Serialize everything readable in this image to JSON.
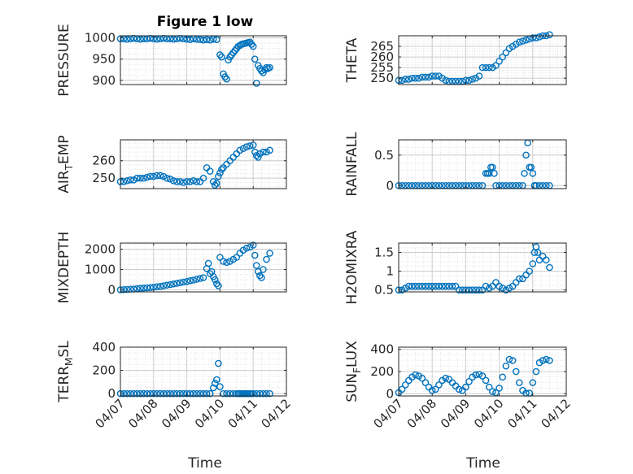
{
  "colors": {
    "marker": "#0072BD",
    "axis": "#262626",
    "grid": "#cccccc",
    "minor_grid": "#e4e4e4"
  },
  "figure": {
    "title": "Figure 1 low",
    "xlabel": "Time"
  },
  "x_ticks": [
    "04/07",
    "04/08",
    "04/09",
    "04/10",
    "04/11",
    "04/12"
  ],
  "chart_data": [
    {
      "type": "scatter",
      "ylabel": "PRESSURE",
      "ylim": [
        890,
        1005
      ],
      "yticks": [
        {
          "v": 900,
          "label": "900"
        },
        {
          "v": 950,
          "label": "950"
        },
        {
          "v": 1000,
          "label": "1000"
        }
      ],
      "x": [
        0.0,
        0.1,
        0.2,
        0.3,
        0.4,
        0.5,
        0.6,
        0.7,
        0.8,
        0.9,
        1.0,
        1.1,
        1.2,
        1.3,
        1.4,
        1.5,
        1.6,
        1.7,
        1.8,
        1.9,
        2.0,
        2.1,
        2.2,
        2.3,
        2.4,
        2.5,
        2.6,
        2.7,
        2.8,
        2.9,
        3.0,
        3.05,
        3.1,
        3.15,
        3.2,
        3.25,
        3.3,
        3.35,
        3.4,
        3.45,
        3.5,
        3.55,
        3.6,
        3.65,
        3.7,
        3.75,
        3.8,
        3.85,
        3.9,
        3.95,
        4.0,
        4.05,
        4.1,
        4.15,
        4.2,
        4.25,
        4.3,
        4.35,
        4.4,
        4.45,
        4.5
      ],
      "y": [
        998,
        998,
        997,
        998,
        999,
        998,
        997,
        998,
        998,
        999,
        998,
        997,
        998,
        999,
        998,
        998,
        997,
        998,
        999,
        998,
        997,
        996,
        998,
        997,
        996,
        995,
        996,
        995,
        997,
        996,
        960,
        955,
        915,
        908,
        903,
        948,
        955,
        960,
        965,
        970,
        975,
        980,
        982,
        985,
        986,
        987,
        988,
        989,
        990,
        985,
        980,
        950,
        893,
        935,
        928,
        922,
        918,
        925,
        930,
        928,
        930
      ]
    },
    {
      "type": "scatter",
      "ylabel": "THETA",
      "ylim": [
        247,
        270
      ],
      "yticks": [
        {
          "v": 250,
          "label": "250"
        },
        {
          "v": 255,
          "label": "255"
        },
        {
          "v": 260,
          "label": "260"
        },
        {
          "v": 265,
          "label": "265"
        }
      ],
      "x": [
        0.0,
        0.1,
        0.2,
        0.3,
        0.4,
        0.5,
        0.6,
        0.7,
        0.8,
        0.9,
        1.0,
        1.1,
        1.2,
        1.3,
        1.4,
        1.5,
        1.6,
        1.7,
        1.8,
        1.9,
        2.0,
        2.1,
        2.2,
        2.3,
        2.4,
        2.5,
        2.6,
        2.7,
        2.8,
        2.9,
        3.0,
        3.1,
        3.2,
        3.3,
        3.4,
        3.5,
        3.6,
        3.7,
        3.8,
        3.9,
        4.0,
        4.1,
        4.2,
        4.3,
        4.4,
        4.5
      ],
      "y": [
        249,
        249,
        249.5,
        249.5,
        250,
        250,
        250,
        250.5,
        250.5,
        250.5,
        251,
        251,
        251,
        250,
        249,
        248.5,
        248.5,
        248.5,
        248.5,
        248.5,
        249,
        249,
        249.5,
        250,
        251,
        255,
        255,
        255,
        255,
        256,
        258,
        260,
        262,
        264,
        265,
        266,
        267,
        267.5,
        268,
        268.5,
        269,
        269,
        269.5,
        270,
        270,
        270.5
      ]
    },
    {
      "type": "scatter",
      "ylabel": "AIR",
      "ylabel_sub": "T",
      "ylabel_suffix": "EMP",
      "ylim": [
        244,
        272
      ],
      "yticks": [
        {
          "v": 250,
          "label": "250"
        },
        {
          "v": 260,
          "label": "260"
        }
      ],
      "x": [
        0.0,
        0.1,
        0.2,
        0.3,
        0.4,
        0.5,
        0.6,
        0.7,
        0.8,
        0.9,
        1.0,
        1.1,
        1.2,
        1.3,
        1.4,
        1.5,
        1.6,
        1.7,
        1.8,
        1.9,
        2.0,
        2.1,
        2.2,
        2.3,
        2.4,
        2.5,
        2.6,
        2.7,
        2.8,
        2.85,
        2.9,
        2.95,
        3.0,
        3.05,
        3.1,
        3.2,
        3.3,
        3.4,
        3.5,
        3.6,
        3.7,
        3.8,
        3.9,
        4.0,
        4.05,
        4.1,
        4.15,
        4.2,
        4.3,
        4.4,
        4.5
      ],
      "y": [
        248,
        248,
        248.5,
        249,
        249,
        250,
        250,
        250,
        250.5,
        251,
        251,
        251.5,
        251.5,
        251,
        250,
        249.5,
        248.5,
        248,
        248,
        247.5,
        248,
        248,
        248.5,
        248,
        248,
        250,
        256,
        254,
        248,
        246,
        247,
        251,
        253,
        255,
        256,
        258,
        260,
        262,
        264,
        266,
        267,
        268,
        268.5,
        269,
        265,
        263,
        262,
        264,
        265,
        265,
        266
      ]
    },
    {
      "type": "scatter",
      "ylabel": "RAINFALL",
      "ylim": [
        -0.05,
        0.75
      ],
      "yticks": [
        {
          "v": 0,
          "label": "0"
        },
        {
          "v": 0.5,
          "label": "0.5"
        }
      ],
      "x": [
        0.0,
        0.1,
        0.2,
        0.3,
        0.4,
        0.5,
        0.6,
        0.7,
        0.8,
        0.9,
        1.0,
        1.1,
        1.2,
        1.3,
        1.4,
        1.5,
        1.6,
        1.7,
        1.8,
        1.9,
        2.0,
        2.1,
        2.2,
        2.3,
        2.4,
        2.5,
        2.6,
        2.65,
        2.7,
        2.75,
        2.8,
        2.85,
        2.9,
        3.0,
        3.1,
        3.2,
        3.3,
        3.4,
        3.5,
        3.6,
        3.7,
        3.75,
        3.8,
        3.85,
        3.9,
        3.95,
        4.0,
        4.05,
        4.1,
        4.2,
        4.3,
        4.4,
        4.5
      ],
      "y": [
        0,
        0,
        0,
        0,
        0,
        0,
        0,
        0,
        0,
        0,
        0,
        0,
        0,
        0,
        0,
        0,
        0,
        0,
        0,
        0,
        0,
        0,
        0,
        0,
        0,
        0,
        0.2,
        0.2,
        0.2,
        0.3,
        0.3,
        0.2,
        0,
        0,
        0,
        0,
        0,
        0,
        0,
        0,
        0,
        0.2,
        0.5,
        0.7,
        0.3,
        0.3,
        0.2,
        0,
        0,
        0,
        0,
        0,
        0
      ]
    },
    {
      "type": "scatter",
      "ylabel": "MIXDEPTH",
      "ylim": [
        -100,
        2300
      ],
      "yticks": [
        {
          "v": 0,
          "label": "0"
        },
        {
          "v": 1000,
          "label": "1000"
        },
        {
          "v": 2000,
          "label": "2000"
        }
      ],
      "x": [
        0.0,
        0.1,
        0.2,
        0.3,
        0.4,
        0.5,
        0.6,
        0.7,
        0.8,
        0.9,
        1.0,
        1.1,
        1.2,
        1.3,
        1.4,
        1.5,
        1.6,
        1.7,
        1.8,
        1.9,
        2.0,
        2.1,
        2.2,
        2.3,
        2.4,
        2.5,
        2.6,
        2.65,
        2.7,
        2.75,
        2.8,
        2.85,
        2.9,
        2.95,
        3.0,
        3.1,
        3.2,
        3.3,
        3.4,
        3.5,
        3.6,
        3.7,
        3.8,
        3.9,
        4.0,
        4.05,
        4.1,
        4.15,
        4.2,
        4.25,
        4.3,
        4.4,
        4.5
      ],
      "y": [
        0,
        10,
        20,
        30,
        40,
        60,
        80,
        90,
        100,
        110,
        130,
        150,
        170,
        200,
        230,
        260,
        290,
        320,
        350,
        380,
        410,
        450,
        480,
        520,
        560,
        600,
        1050,
        1300,
        800,
        900,
        650,
        500,
        300,
        200,
        1600,
        1400,
        1350,
        1400,
        1500,
        1600,
        1800,
        1950,
        2050,
        2100,
        2200,
        1700,
        1200,
        900,
        700,
        600,
        1000,
        1500,
        1800
      ]
    },
    {
      "type": "scatter",
      "ylabel": "H2OMIXRA",
      "ylim": [
        0.45,
        1.75
      ],
      "yticks": [
        {
          "v": 0.5,
          "label": "0.5"
        },
        {
          "v": 1.0,
          "label": "1"
        },
        {
          "v": 1.5,
          "label": "1.5"
        }
      ],
      "x": [
        0.0,
        0.1,
        0.2,
        0.3,
        0.4,
        0.5,
        0.6,
        0.7,
        0.8,
        0.9,
        1.0,
        1.1,
        1.2,
        1.3,
        1.4,
        1.5,
        1.6,
        1.7,
        1.8,
        1.9,
        2.0,
        2.1,
        2.2,
        2.3,
        2.4,
        2.5,
        2.6,
        2.7,
        2.8,
        2.9,
        3.0,
        3.1,
        3.2,
        3.3,
        3.4,
        3.5,
        3.6,
        3.7,
        3.8,
        3.9,
        4.0,
        4.05,
        4.1,
        4.15,
        4.2,
        4.3,
        4.4,
        4.5
      ],
      "y": [
        0.5,
        0.5,
        0.55,
        0.6,
        0.6,
        0.6,
        0.6,
        0.6,
        0.6,
        0.6,
        0.6,
        0.6,
        0.6,
        0.6,
        0.6,
        0.6,
        0.6,
        0.6,
        0.5,
        0.5,
        0.5,
        0.5,
        0.5,
        0.5,
        0.5,
        0.5,
        0.6,
        0.55,
        0.6,
        0.7,
        0.6,
        0.55,
        0.5,
        0.55,
        0.6,
        0.7,
        0.8,
        0.8,
        0.9,
        1.0,
        1.2,
        1.5,
        1.65,
        1.5,
        1.3,
        1.4,
        1.3,
        1.1
      ]
    },
    {
      "type": "scatter",
      "ylabel": "TERR",
      "ylabel_sub": "M",
      "ylabel_suffix": "SL",
      "ylim": [
        -20,
        400
      ],
      "yticks": [
        {
          "v": 0,
          "label": "0"
        },
        {
          "v": 200,
          "label": "200"
        },
        {
          "v": 400,
          "label": "400"
        }
      ],
      "x": [
        0.0,
        0.1,
        0.2,
        0.3,
        0.4,
        0.5,
        0.6,
        0.7,
        0.8,
        0.9,
        1.0,
        1.1,
        1.2,
        1.3,
        1.4,
        1.5,
        1.6,
        1.7,
        1.8,
        1.9,
        2.0,
        2.1,
        2.2,
        2.3,
        2.4,
        2.5,
        2.6,
        2.7,
        2.8,
        2.85,
        2.9,
        2.95,
        3.0,
        3.1,
        3.2,
        3.3,
        3.4,
        3.5,
        3.55,
        3.6,
        3.65,
        3.7,
        3.75,
        3.8,
        3.85,
        3.9,
        3.95,
        4.0,
        4.1,
        4.2,
        4.3,
        4.4,
        4.5
      ],
      "y": [
        0,
        0,
        0,
        0,
        0,
        0,
        0,
        0,
        0,
        0,
        0,
        0,
        0,
        0,
        0,
        0,
        0,
        0,
        0,
        0,
        0,
        0,
        0,
        0,
        0,
        0,
        0,
        0,
        50,
        90,
        120,
        260,
        60,
        0,
        0,
        0,
        0,
        0,
        0,
        0,
        0,
        0,
        0,
        0,
        0,
        0,
        0,
        0,
        0,
        0,
        0,
        0,
        0
      ]
    },
    {
      "type": "scatter",
      "ylabel": "SUN",
      "ylabel_sub": "F",
      "ylabel_suffix": "LUX",
      "ylim": [
        -20,
        420
      ],
      "yticks": [
        {
          "v": 0,
          "label": "0"
        },
        {
          "v": 200,
          "label": "200"
        },
        {
          "v": 400,
          "label": "400"
        }
      ],
      "x": [
        0.0,
        0.1,
        0.2,
        0.3,
        0.4,
        0.5,
        0.6,
        0.7,
        0.8,
        0.9,
        1.0,
        1.1,
        1.2,
        1.3,
        1.4,
        1.5,
        1.6,
        1.7,
        1.8,
        1.9,
        2.0,
        2.1,
        2.2,
        2.3,
        2.4,
        2.5,
        2.6,
        2.7,
        2.8,
        2.9,
        3.0,
        3.1,
        3.2,
        3.3,
        3.4,
        3.5,
        3.6,
        3.7,
        3.8,
        3.9,
        4.0,
        4.1,
        4.2,
        4.3,
        4.4,
        4.5
      ],
      "y": [
        10,
        40,
        80,
        120,
        150,
        170,
        160,
        140,
        100,
        60,
        30,
        40,
        80,
        120,
        140,
        130,
        100,
        70,
        40,
        30,
        60,
        110,
        150,
        170,
        175,
        160,
        120,
        60,
        20,
        10,
        50,
        150,
        250,
        310,
        300,
        200,
        100,
        30,
        5,
        5,
        100,
        200,
        280,
        300,
        310,
        300
      ]
    }
  ]
}
